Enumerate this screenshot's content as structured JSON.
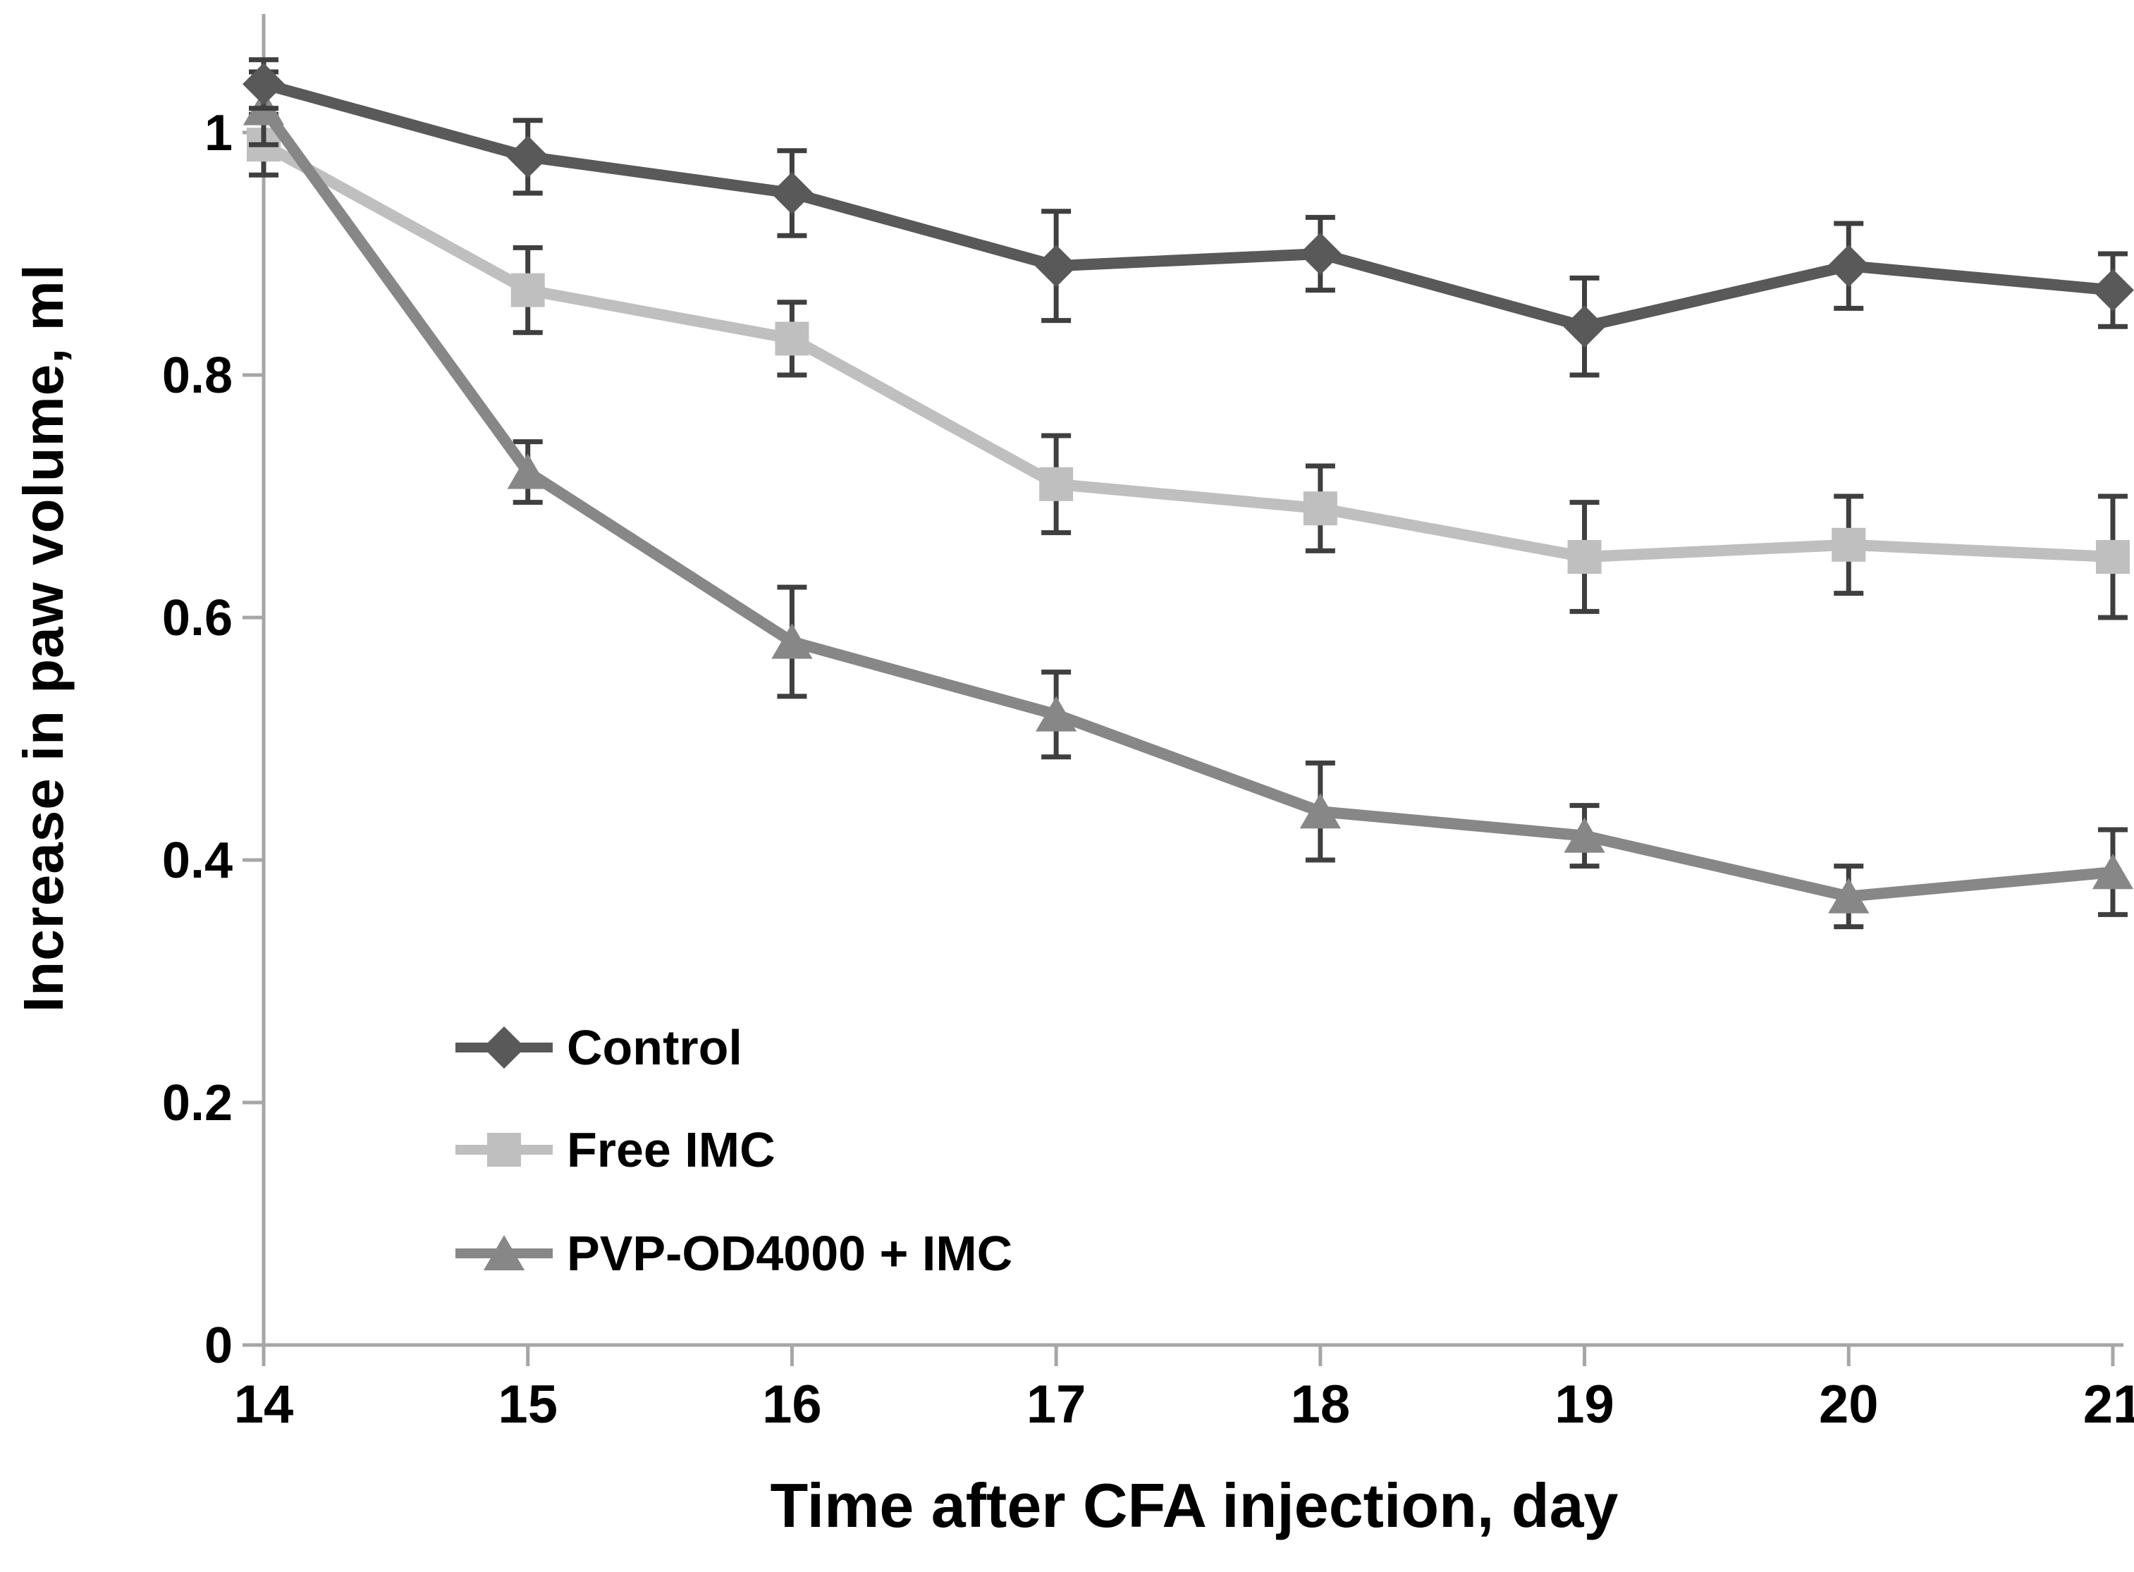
{
  "figure": {
    "background": "#ffffff"
  },
  "chart_data": {
    "type": "line",
    "title": "",
    "xlabel": "Time after CFA injection, day",
    "ylabel": "Increase in paw volume, ml",
    "x": [
      14,
      15,
      16,
      17,
      18,
      19,
      20,
      21
    ],
    "x_tick_labels": [
      "14",
      "15",
      "16",
      "17",
      "18",
      "19",
      "20",
      "21"
    ],
    "y_ticks": [
      0,
      0.2,
      0.4,
      0.6,
      0.8,
      1
    ],
    "y_tick_labels": [
      "0",
      "0.2",
      "0.4",
      "0.6",
      "0.8",
      "1"
    ],
    "ylim": [
      0,
      1.1
    ],
    "xlim": [
      14,
      21
    ],
    "grid": false,
    "legend_position": "inside-lower-left",
    "axis_color": "#a6a6a6",
    "error_bar_color": "#3f3f3f",
    "text_color": "#000000",
    "error_bars": true,
    "series": [
      {
        "name": "Control",
        "marker": "diamond",
        "color": "#595959",
        "values": [
          1.04,
          0.98,
          0.95,
          0.89,
          0.9,
          0.84,
          0.89,
          0.87
        ],
        "errors": [
          0.02,
          0.03,
          0.035,
          0.045,
          0.03,
          0.04,
          0.035,
          0.03
        ]
      },
      {
        "name": "Free IMC",
        "marker": "square",
        "color": "#bfbfbf",
        "values": [
          0.99,
          0.87,
          0.83,
          0.71,
          0.69,
          0.65,
          0.66,
          0.65
        ],
        "errors": [
          0.025,
          0.035,
          0.03,
          0.04,
          0.035,
          0.045,
          0.04,
          0.05
        ]
      },
      {
        "name": "PVP-OD4000 + IMC",
        "marker": "triangle",
        "color": "#878787",
        "values": [
          1.02,
          0.72,
          0.58,
          0.52,
          0.44,
          0.42,
          0.37,
          0.39
        ],
        "errors": [
          0.03,
          0.025,
          0.045,
          0.035,
          0.04,
          0.025,
          0.025,
          0.035
        ]
      }
    ]
  }
}
